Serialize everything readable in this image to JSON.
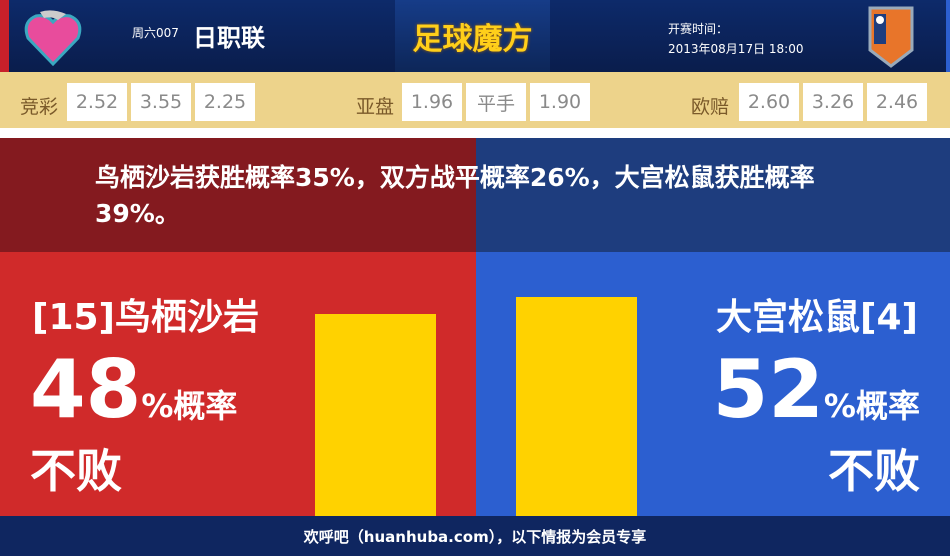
{
  "header": {
    "league_prefix": "周六007",
    "league_name": "日职联",
    "brand": "足球魔方",
    "time_label": "开赛时间：",
    "time_value": "2013年08月17日 18:00",
    "home_logo": "Sagan Tosu",
    "away_logo": "Omiya Ardija"
  },
  "odds": {
    "jingcai": {
      "label": "竞彩",
      "values": [
        "2.52",
        "3.55",
        "2.25"
      ]
    },
    "yapan": {
      "label": "亚盘",
      "values": [
        "1.96",
        "平手",
        "1.90"
      ]
    },
    "oupei": {
      "label": "欧赔",
      "values": [
        "2.60",
        "3.26",
        "2.46"
      ]
    }
  },
  "banner": {
    "text": "鸟栖沙岩获胜概率35%，双方战平概率26%，大宫松鼠获胜概率39%。"
  },
  "home": {
    "team": "[15]鸟栖沙岩",
    "percent": "48",
    "percent_suffix": "%概率",
    "result": "不败",
    "bar_percent": 48
  },
  "away": {
    "team": "大宫松鼠[4]",
    "percent": "52",
    "percent_suffix": "%概率",
    "result": "不败",
    "bar_percent": 52
  },
  "colors": {
    "home": "#d02a2a",
    "away": "#2c5fd0",
    "bar": "#ffd200"
  },
  "footer": {
    "text": "欢呼吧（huanhuba.com），以下情报为会员专享"
  }
}
